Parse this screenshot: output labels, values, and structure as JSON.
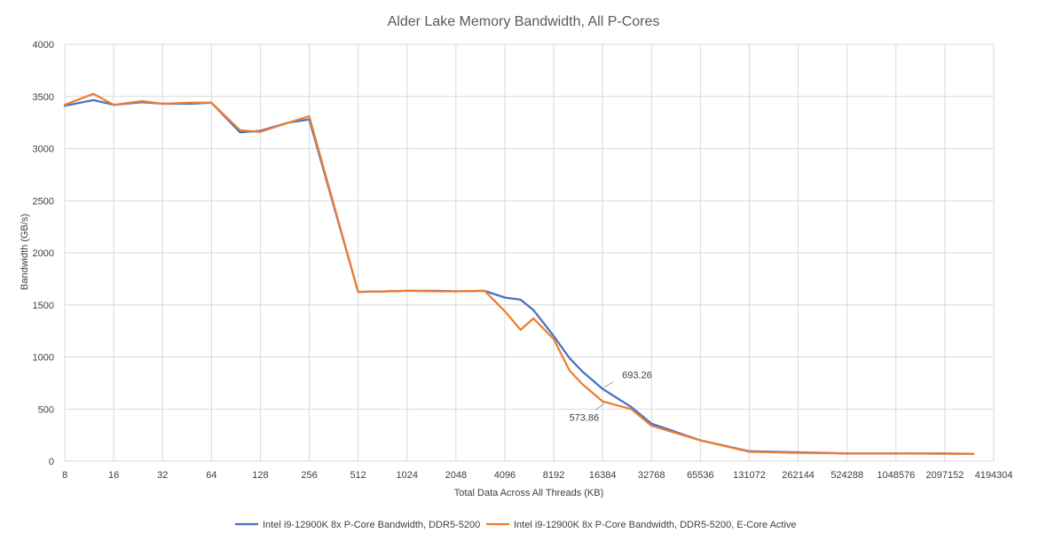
{
  "chart_data": {
    "type": "line",
    "title": "Alder Lake Memory Bandwidth, All P-Cores",
    "xlabel": "Total Data Across All Threads (KB)",
    "ylabel": "Bandwidth (GB/s)",
    "ylim": [
      0,
      4000
    ],
    "yticks": [
      "0",
      "500",
      "1000",
      "1500",
      "2000",
      "2500",
      "3000",
      "3500",
      "4000"
    ],
    "x_scale": "log2",
    "xticks": [
      "8",
      "16",
      "32",
      "64",
      "128",
      "256",
      "512",
      "1024",
      "2048",
      "4096",
      "8192",
      "16384",
      "32768",
      "65536",
      "131072",
      "262144",
      "524288",
      "1048576",
      "2097152",
      "4194304"
    ],
    "grid": true,
    "legend_position": "bottom",
    "series": [
      {
        "name": "Intel i9-12900K 8x P-Core Bandwidth, DDR5-5200",
        "color": "#4472c4",
        "x": [
          8,
          12,
          16,
          24,
          32,
          48,
          64,
          96,
          128,
          192,
          256,
          512,
          768,
          1024,
          1536,
          2048,
          3072,
          4096,
          5120,
          6144,
          8192,
          10240,
          12288,
          16384,
          24576,
          32768,
          65536,
          131072,
          262144,
          524288,
          1048576,
          2097152,
          3145728
        ],
        "y": [
          3410,
          3465,
          3420,
          3445,
          3430,
          3430,
          3440,
          3155,
          3170,
          3250,
          3280,
          1625,
          1630,
          1635,
          1635,
          1630,
          1635,
          1570,
          1550,
          1450,
          1200,
          990,
          860,
          693.26,
          520,
          360,
          200,
          95,
          85,
          75,
          75,
          75,
          70
        ]
      },
      {
        "name": "Intel i9-12900K 8x P-Core Bandwidth, DDR5-5200, E-Core Active",
        "color": "#ed7d31",
        "x": [
          8,
          12,
          16,
          24,
          32,
          48,
          64,
          96,
          128,
          192,
          256,
          512,
          768,
          1024,
          1536,
          2048,
          3072,
          4096,
          5120,
          6144,
          8192,
          10240,
          12288,
          16384,
          24576,
          32768,
          65536,
          131072,
          262144,
          524288,
          1048576,
          2097152,
          3145728
        ],
        "y": [
          3420,
          3525,
          3420,
          3455,
          3430,
          3440,
          3440,
          3175,
          3160,
          3250,
          3310,
          1625,
          1630,
          1635,
          1630,
          1630,
          1635,
          1440,
          1260,
          1370,
          1170,
          870,
          740,
          573.86,
          500,
          340,
          200,
          90,
          80,
          75,
          75,
          70,
          70
        ]
      }
    ],
    "annotations": [
      {
        "text": "693.26",
        "series": 0,
        "x": 16384,
        "y": 693.26
      },
      {
        "text": "573.86",
        "series": 1,
        "x": 16384,
        "y": 573.86
      }
    ]
  }
}
